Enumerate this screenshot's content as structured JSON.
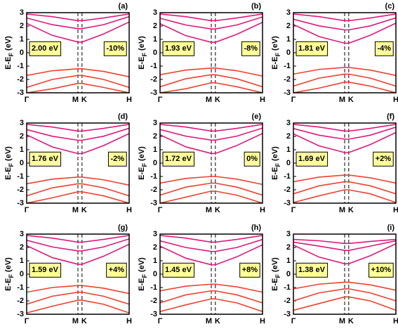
{
  "chart_data": [
    {
      "type": "line",
      "panel_label": "(a)",
      "gap_label": "2.00 eV",
      "strain_label": "-10%",
      "ylabel": [
        "E-E",
        "F",
        " (eV)"
      ],
      "x": [
        0,
        0.5,
        1,
        1.08,
        1.5,
        2
      ],
      "xlim": [
        0,
        2
      ],
      "xticks": [
        {
          "value": 0,
          "label": "Γ"
        },
        {
          "value": 1,
          "label": "M"
        },
        {
          "value": 1.08,
          "label": "K"
        },
        {
          "value": 2,
          "label": "H"
        }
      ],
      "xgrid": "dashed",
      "ylim": [
        -3,
        3
      ],
      "yticks": [
        -3,
        -2,
        -1,
        0,
        1,
        2,
        3
      ],
      "series": [
        {
          "color": "#e0187c",
          "values": [
            2.2,
            1.3,
            0.8,
            0.8,
            1.4,
            2.3
          ]
        },
        {
          "color": "#e0187c",
          "values": [
            2.6,
            2.1,
            1.8,
            1.8,
            2.1,
            2.7
          ]
        },
        {
          "color": "#e0187c",
          "values": [
            2.9,
            2.7,
            2.4,
            2.4,
            2.6,
            2.9
          ]
        },
        {
          "color": "#f0402e",
          "values": [
            -1.7,
            -1.35,
            -1.2,
            -1.2,
            -1.4,
            -1.8
          ]
        },
        {
          "color": "#f0402e",
          "values": [
            -2.6,
            -2.0,
            -1.7,
            -1.7,
            -2.0,
            -2.6
          ]
        },
        {
          "color": "#f0402e",
          "values": [
            -3.0,
            -2.7,
            -2.3,
            -2.3,
            -2.6,
            -3.0
          ]
        }
      ]
    },
    {
      "type": "line",
      "panel_label": "(b)",
      "gap_label": "1.93 eV",
      "strain_label": "-8%",
      "ylabel": [
        "E-E",
        "F",
        " (eV)"
      ],
      "x": [
        0,
        0.5,
        1,
        1.08,
        1.5,
        2
      ],
      "xlim": [
        0,
        2
      ],
      "xticks": [
        {
          "value": 0,
          "label": "Γ"
        },
        {
          "value": 1,
          "label": "M"
        },
        {
          "value": 1.08,
          "label": "K"
        },
        {
          "value": 2,
          "label": "H"
        }
      ],
      "xgrid": "dashed",
      "ylim": [
        -3,
        3
      ],
      "yticks": [
        -3,
        -2,
        -1,
        0,
        1,
        2,
        3
      ],
      "series": [
        {
          "color": "#e0187c",
          "values": [
            2.18,
            1.28,
            0.78,
            0.78,
            1.38,
            2.28
          ]
        },
        {
          "color": "#e0187c",
          "values": [
            2.58,
            2.08,
            1.78,
            1.78,
            2.08,
            2.68
          ]
        },
        {
          "color": "#e0187c",
          "values": [
            2.9,
            2.7,
            2.4,
            2.4,
            2.6,
            2.9
          ]
        },
        {
          "color": "#f0402e",
          "values": [
            -1.65,
            -1.3,
            -1.15,
            -1.15,
            -1.35,
            -1.75
          ]
        },
        {
          "color": "#f0402e",
          "values": [
            -2.55,
            -1.95,
            -1.65,
            -1.65,
            -1.95,
            -2.55
          ]
        },
        {
          "color": "#f0402e",
          "values": [
            -3,
            -2.7,
            -2.25,
            -2.25,
            -2.55,
            -3
          ]
        }
      ]
    },
    {
      "type": "line",
      "panel_label": "(c)",
      "gap_label": "1.81 eV",
      "strain_label": "-4%",
      "ylabel": [
        "E-E",
        "F",
        " (eV)"
      ],
      "x": [
        0,
        0.5,
        1,
        1.08,
        1.5,
        2
      ],
      "xlim": [
        0,
        2
      ],
      "xticks": [
        {
          "value": 0,
          "label": "Γ"
        },
        {
          "value": 1,
          "label": "M"
        },
        {
          "value": 1.08,
          "label": "K"
        },
        {
          "value": 2,
          "label": "H"
        }
      ],
      "xgrid": "dashed",
      "ylim": [
        -3,
        3
      ],
      "yticks": [
        -3,
        -2,
        -1,
        0,
        1,
        2,
        3
      ],
      "series": [
        {
          "color": "#e0187c",
          "values": [
            2.11,
            1.21,
            0.71,
            0.71,
            1.31,
            2.21
          ]
        },
        {
          "color": "#e0187c",
          "values": [
            2.51,
            2.01,
            1.71,
            1.71,
            2.01,
            2.61
          ]
        },
        {
          "color": "#e0187c",
          "values": [
            2.9,
            2.7,
            2.4,
            2.4,
            2.6,
            2.9
          ]
        },
        {
          "color": "#f0402e",
          "values": [
            -1.6,
            -1.25,
            -1.1,
            -1.1,
            -1.3,
            -1.7
          ]
        },
        {
          "color": "#f0402e",
          "values": [
            -2.5,
            -1.9,
            -1.6,
            -1.6,
            -1.9,
            -2.5
          ]
        },
        {
          "color": "#f0402e",
          "values": [
            -3,
            -2.65,
            -2.2,
            -2.2,
            -2.5,
            -3
          ]
        }
      ]
    },
    {
      "type": "line",
      "panel_label": "(d)",
      "gap_label": "1.76 eV",
      "strain_label": "-2%",
      "ylabel": [
        "E-E",
        "F",
        " (eV)"
      ],
      "x": [
        0,
        0.5,
        1,
        1.08,
        1.5,
        2
      ],
      "xlim": [
        0,
        2
      ],
      "xticks": [
        {
          "value": 0,
          "label": "Γ"
        },
        {
          "value": 1,
          "label": "M"
        },
        {
          "value": 1.08,
          "label": "K"
        },
        {
          "value": 2,
          "label": "H"
        }
      ],
      "xgrid": "dashed",
      "ylim": [
        -3,
        3
      ],
      "yticks": [
        -3,
        -2,
        -1,
        0,
        1,
        2,
        3
      ],
      "series": [
        {
          "color": "#e0187c",
          "values": [
            2.11,
            1.21,
            0.71,
            0.71,
            1.31,
            2.21
          ]
        },
        {
          "color": "#e0187c",
          "values": [
            2.51,
            2.01,
            1.71,
            1.71,
            2.01,
            2.61
          ]
        },
        {
          "color": "#e0187c",
          "values": [
            2.9,
            2.7,
            2.4,
            2.4,
            2.6,
            2.9
          ]
        },
        {
          "color": "#f0402e",
          "values": [
            -1.55,
            -1.2,
            -1.05,
            -1.05,
            -1.25,
            -1.65
          ]
        },
        {
          "color": "#f0402e",
          "values": [
            -2.45,
            -1.85,
            -1.55,
            -1.55,
            -1.85,
            -2.45
          ]
        },
        {
          "color": "#f0402e",
          "values": [
            -3,
            -2.6,
            -2.15,
            -2.15,
            -2.45,
            -3
          ]
        }
      ]
    },
    {
      "type": "line",
      "panel_label": "(e)",
      "gap_label": "1.72 eV",
      "strain_label": "0%",
      "ylabel": [
        "E-E",
        "F",
        " (eV)"
      ],
      "x": [
        0,
        0.5,
        1,
        1.08,
        1.5,
        2
      ],
      "xlim": [
        0,
        2
      ],
      "xticks": [
        {
          "value": 0,
          "label": "Γ"
        },
        {
          "value": 1,
          "label": "M"
        },
        {
          "value": 1.08,
          "label": "K"
        },
        {
          "value": 2,
          "label": "H"
        }
      ],
      "xgrid": "dashed",
      "ylim": [
        -3,
        3
      ],
      "yticks": [
        -3,
        -2,
        -1,
        0,
        1,
        2,
        3
      ],
      "series": [
        {
          "color": "#e0187c",
          "values": [
            2.12,
            1.22,
            0.72,
            0.72,
            1.32,
            2.22
          ]
        },
        {
          "color": "#e0187c",
          "values": [
            2.52,
            2.02,
            1.72,
            1.72,
            2.02,
            2.62
          ]
        },
        {
          "color": "#e0187c",
          "values": [
            2.9,
            2.7,
            2.4,
            2.4,
            2.6,
            2.9
          ]
        },
        {
          "color": "#f0402e",
          "values": [
            -1.5,
            -1.15,
            -1,
            -1,
            -1.2,
            -1.6
          ]
        },
        {
          "color": "#f0402e",
          "values": [
            -2.4,
            -1.8,
            -1.5,
            -1.5,
            -1.8,
            -2.4
          ]
        },
        {
          "color": "#f0402e",
          "values": [
            -3,
            -2.55,
            -2.1,
            -2.1,
            -2.4,
            -3
          ]
        }
      ]
    },
    {
      "type": "line",
      "panel_label": "(f)",
      "gap_label": "1.69 eV",
      "strain_label": "+2%",
      "ylabel": [
        "E-E",
        "F",
        " (eV)"
      ],
      "x": [
        0,
        0.5,
        1,
        1.08,
        1.5,
        2
      ],
      "xlim": [
        0,
        2
      ],
      "xticks": [
        {
          "value": 0,
          "label": "Γ"
        },
        {
          "value": 1,
          "label": "M"
        },
        {
          "value": 1.08,
          "label": "K"
        },
        {
          "value": 2,
          "label": "H"
        }
      ],
      "xgrid": "dashed",
      "ylim": [
        -3,
        3
      ],
      "yticks": [
        -3,
        -2,
        -1,
        0,
        1,
        2,
        3
      ],
      "series": [
        {
          "color": "#e0187c",
          "values": [
            2.19,
            1.29,
            0.79,
            0.79,
            1.39,
            2.29
          ]
        },
        {
          "color": "#e0187c",
          "values": [
            2.59,
            2.09,
            1.79,
            1.79,
            2.09,
            2.69
          ]
        },
        {
          "color": "#e0187c",
          "values": [
            2.9,
            2.7,
            2.4,
            2.4,
            2.6,
            2.9
          ]
        },
        {
          "color": "#f0402e",
          "values": [
            -1.4,
            -1.05,
            -0.9,
            -0.9,
            -1.1,
            -1.5
          ]
        },
        {
          "color": "#f0402e",
          "values": [
            -2.3,
            -1.7,
            -1.4,
            -1.4,
            -1.7,
            -2.3
          ]
        },
        {
          "color": "#f0402e",
          "values": [
            -2.95,
            -2.45,
            -2.0,
            -2.0,
            -2.3,
            -2.95
          ]
        }
      ]
    },
    {
      "type": "line",
      "panel_label": "(g)",
      "gap_label": "1.59 eV",
      "strain_label": "+4%",
      "ylabel": [
        "E-E",
        "F",
        " (eV)"
      ],
      "x": [
        0,
        0.5,
        1,
        1.08,
        1.5,
        2
      ],
      "xlim": [
        0,
        2
      ],
      "xticks": [
        {
          "value": 0,
          "label": "Γ"
        },
        {
          "value": 1,
          "label": "M"
        },
        {
          "value": 1.08,
          "label": "K"
        },
        {
          "value": 2,
          "label": "H"
        }
      ],
      "xgrid": "dashed",
      "ylim": [
        -3,
        3
      ],
      "yticks": [
        -3,
        -2,
        -1,
        0,
        1,
        2,
        3
      ],
      "series": [
        {
          "color": "#e0187c",
          "values": [
            2.14,
            1.24,
            0.74,
            0.74,
            1.34,
            2.24
          ]
        },
        {
          "color": "#e0187c",
          "values": [
            2.54,
            2.04,
            1.74,
            1.74,
            2.04,
            2.64
          ]
        },
        {
          "color": "#e0187c",
          "values": [
            2.9,
            2.7,
            2.4,
            2.4,
            2.6,
            2.9
          ]
        },
        {
          "color": "#f0402e",
          "values": [
            -1.35,
            -1.0,
            -0.85,
            -0.85,
            -1.05,
            -1.45
          ]
        },
        {
          "color": "#f0402e",
          "values": [
            -2.25,
            -1.65,
            -1.35,
            -1.35,
            -1.65,
            -2.25
          ]
        },
        {
          "color": "#f0402e",
          "values": [
            -2.9,
            -2.4,
            -1.95,
            -1.95,
            -2.25,
            -2.9
          ]
        }
      ]
    },
    {
      "type": "line",
      "panel_label": "(h)",
      "gap_label": "1.45 eV",
      "strain_label": "+8%",
      "ylabel": [
        "E-E",
        "F",
        " (eV)"
      ],
      "x": [
        0,
        0.5,
        1,
        1.08,
        1.5,
        2
      ],
      "xlim": [
        0,
        2
      ],
      "xticks": [
        {
          "value": 0,
          "label": "Γ"
        },
        {
          "value": 1,
          "label": "M"
        },
        {
          "value": 1.08,
          "label": "K"
        },
        {
          "value": 2,
          "label": "H"
        }
      ],
      "xgrid": "dashed",
      "ylim": [
        -3,
        3
      ],
      "yticks": [
        -3,
        -2,
        -1,
        0,
        1,
        2,
        3
      ],
      "series": [
        {
          "color": "#e0187c",
          "values": [
            2.1,
            1.2,
            0.7,
            0.7,
            1.3,
            2.2
          ]
        },
        {
          "color": "#e0187c",
          "values": [
            2.5,
            2.0,
            1.7,
            1.7,
            2.0,
            2.6
          ]
        },
        {
          "color": "#e0187c",
          "values": [
            2.9,
            2.7,
            2.4,
            2.4,
            2.6,
            2.9
          ]
        },
        {
          "color": "#f0402e",
          "values": [
            -1.25,
            -0.9,
            -0.75,
            -0.75,
            -0.95,
            -1.35
          ]
        },
        {
          "color": "#f0402e",
          "values": [
            -2.15,
            -1.55,
            -1.25,
            -1.25,
            -1.55,
            -2.15
          ]
        },
        {
          "color": "#f0402e",
          "values": [
            -2.8,
            -2.3,
            -1.85,
            -1.85,
            -2.15,
            -2.8
          ]
        }
      ]
    },
    {
      "type": "line",
      "panel_label": "(i)",
      "gap_label": "1.38 eV",
      "strain_label": "+10%",
      "ylabel": [
        "E-E",
        "F",
        " (eV)"
      ],
      "x": [
        0,
        0.5,
        1,
        1.08,
        1.5,
        2
      ],
      "xlim": [
        0,
        2
      ],
      "xticks": [
        {
          "value": 0,
          "label": "Γ"
        },
        {
          "value": 1,
          "label": "M"
        },
        {
          "value": 1.08,
          "label": "K"
        },
        {
          "value": 2,
          "label": "H"
        }
      ],
      "xgrid": "dashed",
      "ylim": [
        -3,
        3
      ],
      "yticks": [
        -3,
        -2,
        -1,
        0,
        1,
        2,
        3
      ],
      "series": [
        {
          "color": "#e0187c",
          "values": [
            2.18,
            1.28,
            0.78,
            0.78,
            1.38,
            2.28
          ]
        },
        {
          "color": "#e0187c",
          "values": [
            2.4,
            2.1,
            1.78,
            1.78,
            2.1,
            2.5
          ]
        },
        {
          "color": "#e0187c",
          "values": [
            2.6,
            2.5,
            2.3,
            2.3,
            2.45,
            2.6
          ]
        },
        {
          "color": "#f0402e",
          "values": [
            -1.1,
            -0.75,
            -0.6,
            -0.6,
            -0.8,
            -1.2
          ]
        },
        {
          "color": "#f0402e",
          "values": [
            -2.0,
            -1.4,
            -1.1,
            -1.1,
            -1.4,
            -2.0
          ]
        },
        {
          "color": "#f0402e",
          "values": [
            -2.7,
            -2.2,
            -1.7,
            -1.7,
            -2.0,
            -2.7
          ]
        }
      ]
    }
  ]
}
